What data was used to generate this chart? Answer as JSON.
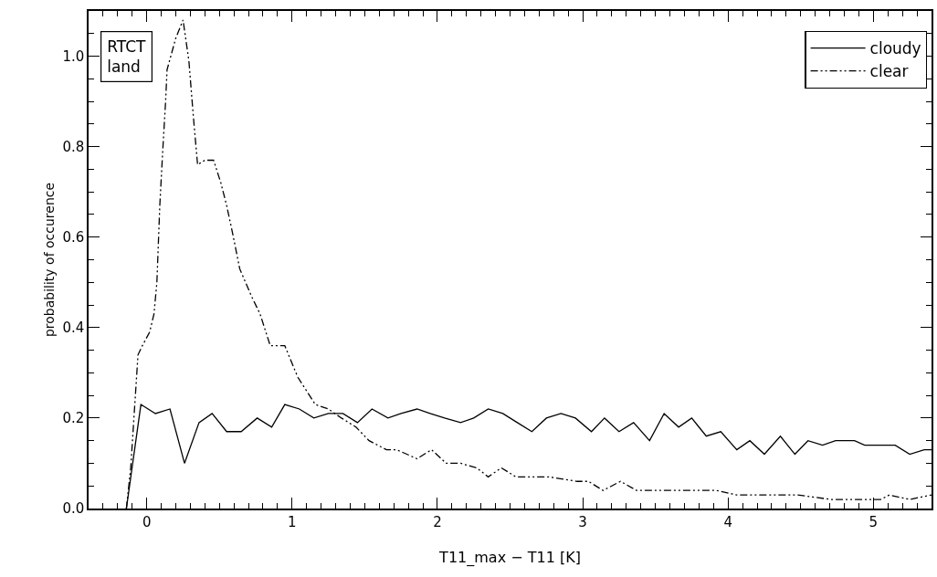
{
  "chart_data": {
    "type": "line",
    "xlabel": "T11_max − T11 [K]",
    "ylabel": "probability of occurence",
    "annotations": [
      "RTCT\nland"
    ],
    "legend": "top right",
    "grid": false,
    "marker": "none",
    "xlim": [
      -0.4,
      5.4
    ],
    "ylim": [
      0,
      1.1
    ],
    "xticks": [
      {
        "value": -0.4,
        "label": null
      },
      {
        "value": -0.3,
        "label": null
      },
      {
        "value": -0.2,
        "label": null
      },
      {
        "value": -0.1,
        "label": null
      },
      0,
      {
        "value": 0.1,
        "label": null
      },
      {
        "value": 0.2,
        "label": null
      },
      {
        "value": 0.3,
        "label": null
      },
      {
        "value": 0.4,
        "label": null
      },
      {
        "value": 0.5,
        "label": null
      },
      {
        "value": 0.6,
        "label": null
      },
      {
        "value": 0.7,
        "label": null
      },
      {
        "value": 0.8,
        "label": null
      },
      {
        "value": 0.9,
        "label": null
      },
      1,
      {
        "value": 1.1,
        "label": null
      },
      {
        "value": 1.2,
        "label": null
      },
      {
        "value": 1.3,
        "label": null
      },
      {
        "value": 1.4,
        "label": null
      },
      {
        "value": 1.5,
        "label": null
      },
      {
        "value": 1.6,
        "label": null
      },
      {
        "value": 1.7,
        "label": null
      },
      {
        "value": 1.8,
        "label": null
      },
      {
        "value": 1.9,
        "label": null
      },
      2,
      {
        "value": 2.1,
        "label": null
      },
      {
        "value": 2.2,
        "label": null
      },
      {
        "value": 2.3,
        "label": null
      },
      {
        "value": 2.4,
        "label": null
      },
      {
        "value": 2.5,
        "label": null
      },
      {
        "value": 2.6,
        "label": null
      },
      {
        "value": 2.7,
        "label": null
      },
      {
        "value": 2.8,
        "label": null
      },
      {
        "value": 2.9,
        "label": null
      },
      3,
      {
        "value": 3.1,
        "label": null
      },
      {
        "value": 3.2,
        "label": null
      },
      {
        "value": 3.3,
        "label": null
      },
      {
        "value": 3.4,
        "label": null
      },
      {
        "value": 3.5,
        "label": null
      },
      {
        "value": 3.6,
        "label": null
      },
      {
        "value": 3.7,
        "label": null
      },
      {
        "value": 3.8,
        "label": null
      },
      {
        "value": 3.9,
        "label": null
      },
      4,
      {
        "value": 4.1,
        "label": null
      },
      {
        "value": 4.2,
        "label": null
      },
      {
        "value": 4.3,
        "label": null
      },
      {
        "value": 4.4,
        "label": null
      },
      {
        "value": 4.5,
        "label": null
      },
      {
        "value": 4.6,
        "label": null
      },
      {
        "value": 4.7,
        "label": null
      },
      {
        "value": 4.8,
        "label": null
      },
      {
        "value": 4.9,
        "label": null
      },
      5,
      {
        "value": 5.1,
        "label": null
      },
      {
        "value": 5.2,
        "label": null
      },
      {
        "value": 5.3,
        "label": null
      }
    ],
    "yticks": [
      {
        "value": 0,
        "label": "0.0"
      },
      {
        "value": 0.05,
        "label": null
      },
      {
        "value": 0.1,
        "label": null
      },
      {
        "value": 0.15,
        "label": null
      },
      0.2,
      {
        "value": 0.25,
        "label": null
      },
      {
        "value": 0.3,
        "label": null
      },
      {
        "value": 0.35,
        "label": null
      },
      0.4,
      {
        "value": 0.45,
        "label": null
      },
      {
        "value": 0.5,
        "label": null
      },
      {
        "value": 0.55,
        "label": null
      },
      0.6,
      {
        "value": 0.65,
        "label": null
      },
      {
        "value": 0.7,
        "label": null
      },
      {
        "value": 0.75,
        "label": null
      },
      0.8,
      {
        "value": 0.85,
        "label": null
      },
      {
        "value": 0.9,
        "label": null
      },
      {
        "value": 0.95,
        "label": null
      },
      {
        "value": 1,
        "label": "1.0"
      },
      {
        "value": 1.05,
        "label": null
      }
    ],
    "series": [
      {
        "name": "cloudy",
        "color": "#000000",
        "line_style": "solid",
        "x": [
          -0.14,
          -0.04,
          0.06,
          0.16,
          0.26,
          0.36,
          0.45,
          0.55,
          0.65,
          0.76,
          0.86,
          0.95,
          1.05,
          1.15,
          1.25,
          1.35,
          1.45,
          1.55,
          1.66,
          1.75,
          1.86,
          1.95,
          2.05,
          2.16,
          2.25,
          2.35,
          2.45,
          2.55,
          2.65,
          2.75,
          2.85,
          2.95,
          3.06,
          3.15,
          3.25,
          3.35,
          3.46,
          3.56,
          3.66,
          3.75,
          3.85,
          3.95,
          4.06,
          4.15,
          4.25,
          4.36,
          4.46,
          4.55,
          4.65,
          4.74,
          4.87,
          4.94,
          5.15,
          5.25,
          5.35,
          5.4
        ],
        "values": [
          0,
          0.23,
          0.21,
          0.22,
          0.1,
          0.19,
          0.21,
          0.17,
          0.17,
          0.2,
          0.18,
          0.23,
          0.22,
          0.2,
          0.21,
          0.21,
          0.19,
          0.22,
          0.2,
          0.21,
          0.22,
          0.21,
          0.2,
          0.19,
          0.2,
          0.22,
          0.21,
          0.19,
          0.17,
          0.2,
          0.21,
          0.2,
          0.17,
          0.2,
          0.17,
          0.19,
          0.15,
          0.21,
          0.18,
          0.2,
          0.16,
          0.17,
          0.13,
          0.15,
          0.12,
          0.16,
          0.12,
          0.15,
          0.14,
          0.15,
          0.15,
          0.14,
          0.14,
          0.12,
          0.13,
          0.13
        ]
      },
      {
        "name": "clear",
        "color": "#000000",
        "line_style": "dashed",
        "x": [
          -0.14,
          -0.11,
          -0.08,
          -0.06,
          -0.03,
          0.02,
          0.05,
          0.07,
          0.09,
          0.11,
          0.13,
          0.14,
          0.2,
          0.25,
          0.29,
          0.32,
          0.35,
          0.4,
          0.46,
          0.51,
          0.55,
          0.59,
          0.64,
          0.72,
          0.78,
          0.85,
          0.95,
          1.04,
          1.12,
          1.16,
          1.25,
          1.34,
          1.44,
          1.53,
          1.65,
          1.72,
          1.86,
          1.96,
          2.06,
          2.16,
          2.27,
          2.35,
          2.44,
          2.54,
          2.66,
          2.77,
          2.96,
          3.04,
          3.14,
          3.26,
          3.37,
          3.48,
          3.58,
          3.79,
          3.92,
          4.06,
          4.27,
          4.48,
          4.71,
          4.9,
          5.05,
          5.11,
          5.25,
          5.4
        ],
        "values": [
          0,
          0.09,
          0.24,
          0.34,
          0.36,
          0.39,
          0.43,
          0.5,
          0.67,
          0.79,
          0.9,
          0.97,
          1.04,
          1.08,
          0.99,
          0.87,
          0.76,
          0.77,
          0.77,
          0.72,
          0.67,
          0.61,
          0.53,
          0.47,
          0.43,
          0.36,
          0.36,
          0.29,
          0.25,
          0.23,
          0.22,
          0.2,
          0.18,
          0.15,
          0.13,
          0.13,
          0.11,
          0.13,
          0.1,
          0.1,
          0.09,
          0.07,
          0.09,
          0.07,
          0.07,
          0.07,
          0.06,
          0.06,
          0.04,
          0.06,
          0.04,
          0.04,
          0.04,
          0.04,
          0.04,
          0.03,
          0.03,
          0.03,
          0.02,
          0.02,
          0.02,
          0.03,
          0.02,
          0.03
        ]
      }
    ]
  }
}
